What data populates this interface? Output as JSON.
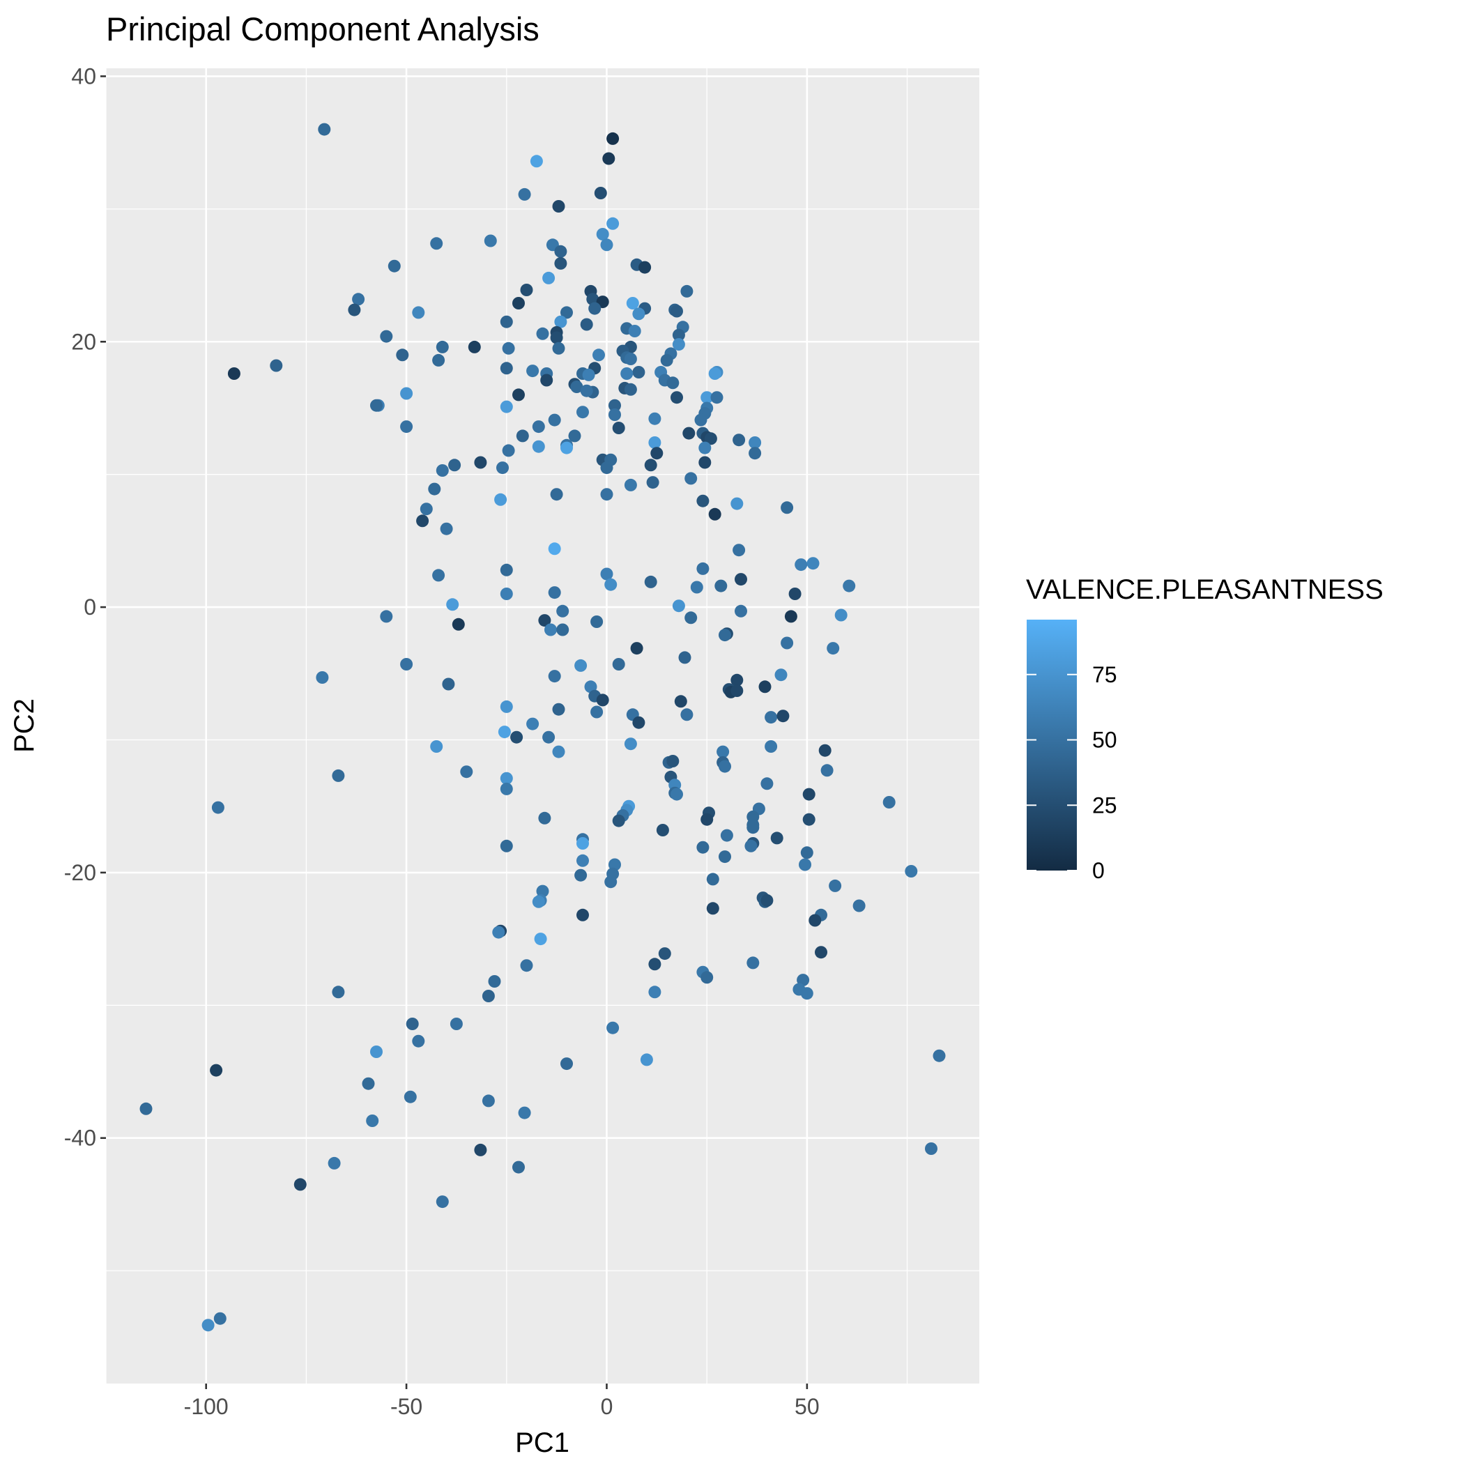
{
  "chart_data": {
    "type": "scatter",
    "title": "Principal Component Analysis",
    "xlabel": "PC1",
    "ylabel": "PC2",
    "xlim": [
      -125,
      93
    ],
    "ylim": [
      -58.5,
      40.6
    ],
    "x_ticks": [
      -100,
      -50,
      0,
      50
    ],
    "y_ticks": [
      40,
      20,
      0,
      -20,
      -40
    ],
    "x_tick_labels": [
      "-100",
      "-50",
      "0",
      "50"
    ],
    "y_tick_labels": [
      "40",
      "20",
      "0",
      "-20",
      "-40"
    ],
    "grid": true,
    "legend": {
      "title": "VALENCE.PLEASANTNESS",
      "placement": "right",
      "min": 0,
      "max": 96,
      "low_color": "#132b43",
      "high_color": "#56b1f7",
      "ticks": [
        0,
        25,
        50,
        75
      ],
      "tick_labels": [
        "0",
        "25",
        "50",
        "75"
      ]
    },
    "colors": {
      "panel": "#ebebeb",
      "gridline": "#ffffff",
      "tick": "#333333"
    },
    "points": [
      [
        -70.5,
        36,
        45
      ],
      [
        1.5,
        35.3,
        5
      ],
      [
        0.5,
        33.8,
        10
      ],
      [
        -17.5,
        33.6,
        85
      ],
      [
        -12,
        30.2,
        20
      ],
      [
        -1.5,
        31.2,
        25
      ],
      [
        -20.5,
        31.1,
        50
      ],
      [
        1.5,
        28.9,
        80
      ],
      [
        -1,
        28.1,
        70
      ],
      [
        -29,
        27.6,
        55
      ],
      [
        -42.5,
        27.4,
        50
      ],
      [
        -13.5,
        27.3,
        55
      ],
      [
        0,
        27.3,
        65
      ],
      [
        -11.5,
        26.8,
        40
      ],
      [
        -53,
        25.7,
        45
      ],
      [
        -11.5,
        25.9,
        30
      ],
      [
        7.5,
        25.8,
        35
      ],
      [
        9.5,
        25.6,
        15
      ],
      [
        -14.5,
        24.8,
        80
      ],
      [
        -20,
        23.9,
        25
      ],
      [
        -4,
        23.8,
        20
      ],
      [
        20,
        23.8,
        45
      ],
      [
        -62,
        23.2,
        50
      ],
      [
        -3.5,
        23.2,
        30
      ],
      [
        -1,
        23,
        10
      ],
      [
        -22,
        22.9,
        15
      ],
      [
        6.5,
        22.9,
        85
      ],
      [
        -63,
        22.4,
        30
      ],
      [
        -3,
        22.5,
        40
      ],
      [
        9.5,
        22.5,
        35
      ],
      [
        -10,
        22.2,
        45
      ],
      [
        -47,
        22.2,
        65
      ],
      [
        8,
        22.1,
        70
      ],
      [
        17,
        22.4,
        40
      ],
      [
        17.5,
        22.3,
        35
      ],
      [
        -11.5,
        21.5,
        75
      ],
      [
        -25,
        21.5,
        40
      ],
      [
        -5,
        21.3,
        35
      ],
      [
        5,
        21,
        45
      ],
      [
        19,
        21.1,
        50
      ],
      [
        7,
        20.8,
        60
      ],
      [
        -12.5,
        20.7,
        20
      ],
      [
        -16,
        20.6,
        50
      ],
      [
        18,
        20.5,
        40
      ],
      [
        -55,
        20.4,
        45
      ],
      [
        -12.5,
        20.3,
        25
      ],
      [
        -41,
        19.6,
        45
      ],
      [
        -33,
        19.6,
        15
      ],
      [
        -24.5,
        19.5,
        50
      ],
      [
        -12,
        19.5,
        45
      ],
      [
        6,
        19.6,
        30
      ],
      [
        -51,
        19,
        40
      ],
      [
        4,
        19.3,
        35
      ],
      [
        16,
        19.1,
        50
      ],
      [
        18,
        19.8,
        70
      ],
      [
        -2,
        19,
        60
      ],
      [
        5,
        18.8,
        45
      ],
      [
        -42,
        18.6,
        45
      ],
      [
        6,
        18.7,
        50
      ],
      [
        15,
        18.6,
        45
      ],
      [
        -82.5,
        18.2,
        40
      ],
      [
        -25,
        18,
        40
      ],
      [
        -3,
        18,
        25
      ],
      [
        -18.5,
        17.8,
        55
      ],
      [
        8,
        17.7,
        40
      ],
      [
        -15,
        17.6,
        50
      ],
      [
        -6,
        17.6,
        45
      ],
      [
        -4.5,
        17.5,
        60
      ],
      [
        13.5,
        17.7,
        60
      ],
      [
        27.5,
        17.7,
        70
      ],
      [
        5,
        17.6,
        60
      ],
      [
        -93,
        17.6,
        10
      ],
      [
        27,
        17.6,
        80
      ],
      [
        14.5,
        17.1,
        50
      ],
      [
        -15,
        17.1,
        20
      ],
      [
        16.5,
        16.9,
        45
      ],
      [
        -8,
        16.8,
        25
      ],
      [
        -7.5,
        16.6,
        45
      ],
      [
        4.5,
        16.5,
        30
      ],
      [
        6,
        16.4,
        40
      ],
      [
        -50,
        16.1,
        75
      ],
      [
        -3.5,
        16.2,
        40
      ],
      [
        -5,
        16.3,
        50
      ],
      [
        -22,
        16,
        15
      ],
      [
        17.5,
        15.8,
        25
      ],
      [
        25,
        15.8,
        80
      ],
      [
        27.5,
        15.8,
        50
      ],
      [
        -57,
        15.2,
        60
      ],
      [
        -57.5,
        15.2,
        45
      ],
      [
        -25,
        15.1,
        80
      ],
      [
        2,
        15.2,
        40
      ],
      [
        25,
        15,
        55
      ],
      [
        -6,
        14.7,
        55
      ],
      [
        2,
        14.5,
        50
      ],
      [
        24.5,
        14.6,
        50
      ],
      [
        -13,
        14.1,
        50
      ],
      [
        12,
        14.2,
        60
      ],
      [
        23.5,
        14.1,
        50
      ],
      [
        -17,
        13.6,
        50
      ],
      [
        3,
        13.5,
        25
      ],
      [
        -50,
        13.6,
        50
      ],
      [
        24,
        13.1,
        35
      ],
      [
        20.5,
        13.1,
        20
      ],
      [
        -21,
        12.9,
        40
      ],
      [
        -8,
        12.9,
        45
      ],
      [
        25,
        12.8,
        20
      ],
      [
        26,
        12.7,
        25
      ],
      [
        33,
        12.6,
        40
      ],
      [
        12,
        12.4,
        80
      ],
      [
        37,
        12.4,
        65
      ],
      [
        -10,
        12.2,
        50
      ],
      [
        -17,
        12.1,
        75
      ],
      [
        -10,
        12,
        85
      ],
      [
        24.5,
        12,
        60
      ],
      [
        12.5,
        11.6,
        20
      ],
      [
        37,
        11.6,
        45
      ],
      [
        -24.5,
        11.8,
        50
      ],
      [
        -1,
        11.1,
        30
      ],
      [
        1,
        11.1,
        45
      ],
      [
        -38,
        10.7,
        40
      ],
      [
        11,
        10.7,
        25
      ],
      [
        24.5,
        10.9,
        20
      ],
      [
        -31.5,
        10.9,
        20
      ],
      [
        -26,
        10.5,
        50
      ],
      [
        0,
        10.5,
        45
      ],
      [
        -41,
        10.3,
        50
      ],
      [
        21,
        9.7,
        50
      ],
      [
        11.5,
        9.4,
        40
      ],
      [
        6,
        9.2,
        55
      ],
      [
        -43,
        8.9,
        45
      ],
      [
        -12.5,
        8.5,
        45
      ],
      [
        0,
        8.5,
        50
      ],
      [
        -26.5,
        8.1,
        80
      ],
      [
        24,
        8,
        30
      ],
      [
        32.5,
        7.8,
        75
      ],
      [
        45,
        7.5,
        45
      ],
      [
        -45,
        7.4,
        50
      ],
      [
        27,
        7,
        10
      ],
      [
        -46,
        6.5,
        20
      ],
      [
        -40,
        5.9,
        50
      ],
      [
        -13,
        4.4,
        90
      ],
      [
        33,
        4.3,
        50
      ],
      [
        48.5,
        3.2,
        60
      ],
      [
        51.5,
        3.3,
        65
      ],
      [
        24,
        2.9,
        50
      ],
      [
        -25,
        2.8,
        45
      ],
      [
        -42,
        2.4,
        50
      ],
      [
        0,
        2.5,
        60
      ],
      [
        33.5,
        2.1,
        20
      ],
      [
        11,
        1.9,
        40
      ],
      [
        1,
        1.7,
        70
      ],
      [
        22.5,
        1.5,
        55
      ],
      [
        28.5,
        1.6,
        45
      ],
      [
        60.5,
        1.6,
        55
      ],
      [
        -13,
        1.1,
        50
      ],
      [
        -25,
        1,
        60
      ],
      [
        47,
        1,
        20
      ],
      [
        -38.5,
        0.2,
        80
      ],
      [
        18,
        0.1,
        75
      ],
      [
        -11,
        -0.3,
        50
      ],
      [
        33.5,
        -0.3,
        50
      ],
      [
        58.5,
        -0.6,
        70
      ],
      [
        -55,
        -0.7,
        50
      ],
      [
        -15.5,
        -1,
        20
      ],
      [
        -2.5,
        -1.1,
        45
      ],
      [
        21,
        -0.8,
        45
      ],
      [
        46,
        -0.7,
        10
      ],
      [
        -37,
        -1.3,
        10
      ],
      [
        -14,
        -1.7,
        60
      ],
      [
        -11,
        -1.7,
        45
      ],
      [
        30,
        -2,
        25
      ],
      [
        29.5,
        -2.1,
        45
      ],
      [
        45,
        -2.7,
        50
      ],
      [
        7.5,
        -3.1,
        15
      ],
      [
        56.5,
        -3.1,
        55
      ],
      [
        19.5,
        -3.8,
        40
      ],
      [
        -50,
        -4.3,
        50
      ],
      [
        -6.5,
        -4.4,
        70
      ],
      [
        3,
        -4.3,
        45
      ],
      [
        -71,
        -5.3,
        55
      ],
      [
        -13,
        -5.2,
        50
      ],
      [
        43.5,
        -5.1,
        65
      ],
      [
        32.5,
        -5.5,
        20
      ],
      [
        -39.5,
        -5.8,
        40
      ],
      [
        -4,
        -6,
        60
      ],
      [
        39.5,
        -6,
        15
      ],
      [
        30.5,
        -6.2,
        25
      ],
      [
        31,
        -6.4,
        15
      ],
      [
        32.5,
        -6.3,
        20
      ],
      [
        -3,
        -6.7,
        40
      ],
      [
        -1,
        -7,
        20
      ],
      [
        18.5,
        -7.1,
        20
      ],
      [
        -25,
        -7.5,
        75
      ],
      [
        -12,
        -7.7,
        40
      ],
      [
        -2.5,
        -7.9,
        50
      ],
      [
        20,
        -8.1,
        50
      ],
      [
        6.5,
        -8.1,
        50
      ],
      [
        41,
        -8.3,
        50
      ],
      [
        44,
        -8.2,
        20
      ],
      [
        8,
        -8.7,
        20
      ],
      [
        -18.5,
        -8.8,
        60
      ],
      [
        -25.5,
        -9.4,
        85
      ],
      [
        -22.5,
        -9.8,
        25
      ],
      [
        -14.5,
        -9.8,
        50
      ],
      [
        -42.5,
        -10.5,
        75
      ],
      [
        41,
        -10.5,
        55
      ],
      [
        6,
        -10.3,
        70
      ],
      [
        -12,
        -10.9,
        65
      ],
      [
        29,
        -10.9,
        55
      ],
      [
        54.5,
        -10.8,
        20
      ],
      [
        15.5,
        -11.7,
        40
      ],
      [
        16.5,
        -11.6,
        30
      ],
      [
        29,
        -11.7,
        40
      ],
      [
        29.5,
        -12,
        50
      ],
      [
        55,
        -12.3,
        50
      ],
      [
        -67,
        -12.7,
        45
      ],
      [
        -35,
        -12.4,
        50
      ],
      [
        -25,
        -12.9,
        75
      ],
      [
        16,
        -12.8,
        30
      ],
      [
        40,
        -13.3,
        50
      ],
      [
        -25,
        -13.7,
        55
      ],
      [
        17,
        -13.4,
        65
      ],
      [
        17,
        -14,
        45
      ],
      [
        17.5,
        -14.1,
        55
      ],
      [
        50.5,
        -14.1,
        20
      ],
      [
        70.5,
        -14.7,
        50
      ],
      [
        -97,
        -15.1,
        50
      ],
      [
        38,
        -15.2,
        50
      ],
      [
        5.5,
        -15,
        80
      ],
      [
        5,
        -15.3,
        70
      ],
      [
        25.5,
        -15.5,
        25
      ],
      [
        4,
        -15.7,
        50
      ],
      [
        -15.5,
        -15.9,
        45
      ],
      [
        36.5,
        -15.8,
        45
      ],
      [
        25,
        -16,
        20
      ],
      [
        3,
        -16.1,
        30
      ],
      [
        50.5,
        -16,
        25
      ],
      [
        36.5,
        -16.4,
        45
      ],
      [
        36.5,
        -16.6,
        45
      ],
      [
        14,
        -16.8,
        25
      ],
      [
        30,
        -17.2,
        50
      ],
      [
        42.5,
        -17.4,
        25
      ],
      [
        -6,
        -17.5,
        50
      ],
      [
        -6,
        -17.8,
        85
      ],
      [
        36.5,
        -17.8,
        30
      ],
      [
        36,
        -18,
        50
      ],
      [
        -25,
        -18,
        45
      ],
      [
        24,
        -18.1,
        45
      ],
      [
        50,
        -18.5,
        45
      ],
      [
        29.5,
        -18.8,
        45
      ],
      [
        -6,
        -19.1,
        60
      ],
      [
        2,
        -19.4,
        55
      ],
      [
        49.5,
        -19.4,
        55
      ],
      [
        76,
        -19.9,
        55
      ],
      [
        1.5,
        -20.1,
        50
      ],
      [
        -6.5,
        -20.2,
        45
      ],
      [
        26.5,
        -20.5,
        45
      ],
      [
        1,
        -20.7,
        50
      ],
      [
        57,
        -21,
        50
      ],
      [
        -16,
        -21.4,
        55
      ],
      [
        39,
        -21.9,
        30
      ],
      [
        39.5,
        -22.2,
        35
      ],
      [
        40,
        -22.1,
        25
      ],
      [
        -16.5,
        -22.1,
        60
      ],
      [
        -17,
        -22.2,
        70
      ],
      [
        63,
        -22.5,
        50
      ],
      [
        26.5,
        -22.7,
        20
      ],
      [
        -6,
        -23.2,
        20
      ],
      [
        53.5,
        -23.2,
        45
      ],
      [
        52,
        -23.6,
        20
      ],
      [
        -26.5,
        -24.4,
        20
      ],
      [
        -27,
        -24.5,
        60
      ],
      [
        -16.5,
        -25,
        85
      ],
      [
        14.5,
        -26.1,
        30
      ],
      [
        53.5,
        -26,
        20
      ],
      [
        12,
        -26.9,
        25
      ],
      [
        36.5,
        -26.8,
        50
      ],
      [
        -20,
        -27,
        50
      ],
      [
        24,
        -27.5,
        55
      ],
      [
        25,
        -27.9,
        45
      ],
      [
        49,
        -28.1,
        50
      ],
      [
        -28,
        -28.2,
        45
      ],
      [
        -67,
        -29,
        45
      ],
      [
        12,
        -29,
        60
      ],
      [
        48,
        -28.8,
        55
      ],
      [
        50,
        -29.1,
        55
      ],
      [
        -29.5,
        -29.3,
        40
      ],
      [
        -48.5,
        -31.4,
        40
      ],
      [
        -37.5,
        -31.4,
        50
      ],
      [
        1.5,
        -31.7,
        55
      ],
      [
        -47,
        -32.7,
        50
      ],
      [
        -57.5,
        -33.5,
        75
      ],
      [
        83,
        -33.8,
        50
      ],
      [
        10,
        -34.1,
        75
      ],
      [
        -10,
        -34.4,
        45
      ],
      [
        -97.5,
        -34.9,
        15
      ],
      [
        -59.5,
        -35.9,
        45
      ],
      [
        -49,
        -36.9,
        50
      ],
      [
        -29.5,
        -37.2,
        50
      ],
      [
        -115,
        -37.8,
        45
      ],
      [
        -20.5,
        -38.1,
        55
      ],
      [
        -58.5,
        -38.7,
        55
      ],
      [
        81,
        -40.8,
        50
      ],
      [
        -31.5,
        -40.9,
        20
      ],
      [
        -22,
        -42.2,
        45
      ],
      [
        -68,
        -41.9,
        55
      ],
      [
        -76.5,
        -43.5,
        20
      ],
      [
        -41,
        -44.8,
        50
      ],
      [
        -96.5,
        -53.6,
        50
      ],
      [
        -99.5,
        -54.1,
        70
      ]
    ]
  }
}
